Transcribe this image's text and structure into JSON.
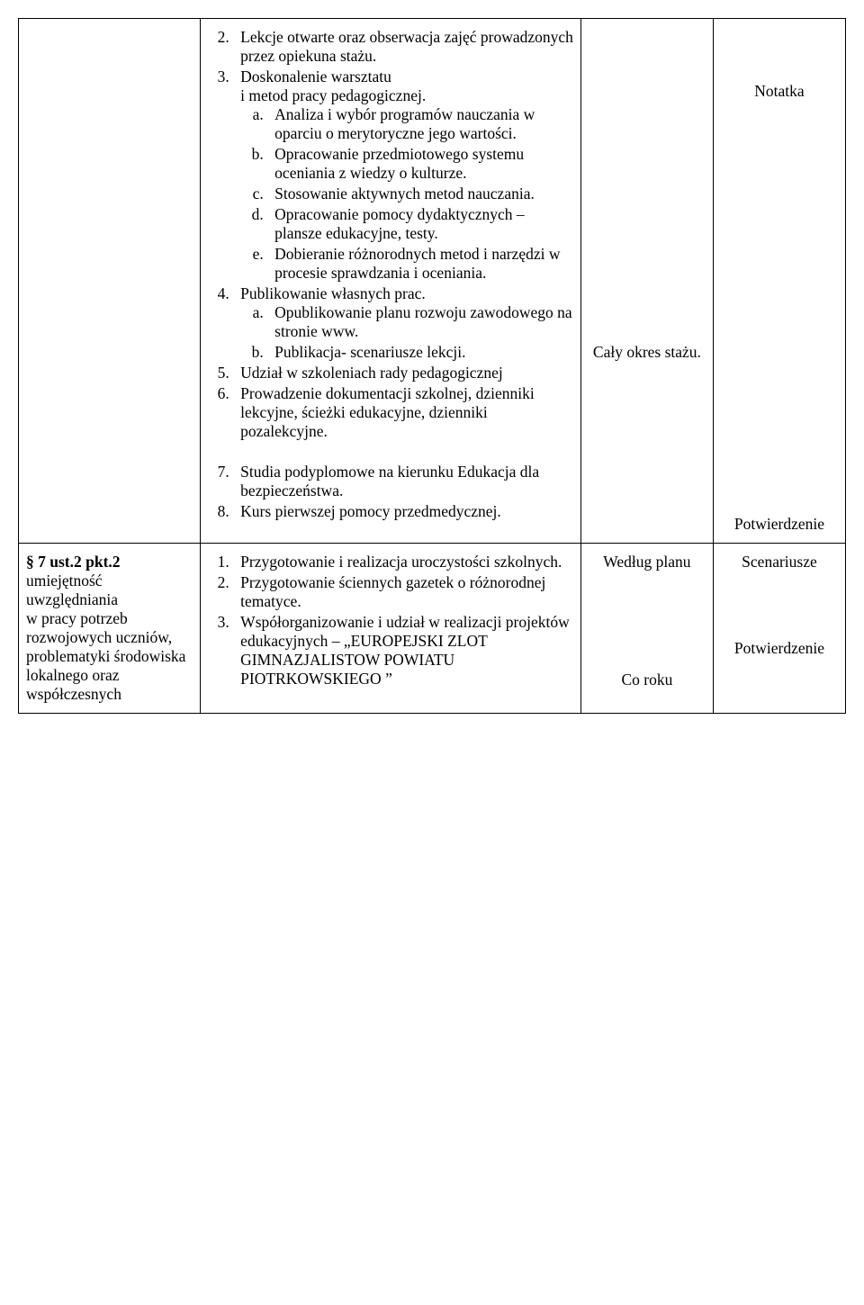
{
  "row1": {
    "col1": "",
    "col2": {
      "start": 2,
      "items": [
        {
          "text": "Lekcje otwarte oraz obserwacja zajęć prowadzonych przez opiekuna stażu."
        },
        {
          "text": "Doskonalenie warsztatu\ni metod pracy pedagogicznej.",
          "sub": [
            "Analiza i wybór programów nauczania w oparciu o merytoryczne jego wartości.",
            "Opracowanie przedmiotowego systemu oceniania z wiedzy o kulturze.",
            "Stosowanie aktywnych metod nauczania.",
            "Opracowanie pomocy dydaktycznych – plansze edukacyjne, testy.",
            "Dobieranie różnorodnych metod i narzędzi w procesie sprawdzania i oceniania."
          ]
        },
        {
          "text": "Publikowanie własnych prac.",
          "sub": [
            "Opublikowanie planu rozwoju zawodowego na stronie www.",
            "Publikacja- scenariusze lekcji."
          ]
        },
        {
          "text": "Udział w szkoleniach rady pedagogicznej"
        },
        {
          "text": "Prowadzenie dokumentacji szkolnej, dzienniki lekcyjne, ścieżki edukacyjne, dzienniki pozalekcyjne."
        },
        {
          "gap": true
        },
        {
          "text": "Studia podyplomowe  na kierunku Edukacja dla bezpieczeństwa."
        },
        {
          "text": "Kurs pierwszej pomocy przedmedycznej."
        }
      ]
    },
    "col3": "Cały okres stażu.",
    "col4": {
      "a": "Notatka",
      "b": "Potwierdzenie"
    }
  },
  "row2": {
    "col1": {
      "heading": "§ 7 ust.2 pkt.2",
      "body": "umiejętność uwzględniania\nw pracy potrzeb rozwojowych uczniów, problematyki środowiska lokalnego oraz współczesnych"
    },
    "col2": {
      "start": 1,
      "items": [
        {
          "text": "Przygotowanie i realizacja uroczystości szkolnych."
        },
        {
          "text": "Przygotowanie ściennych gazetek o różnorodnej tematyce."
        },
        {
          "text": "Współorganizowanie i udział w realizacji projektów edukacyjnych – „EUROPEJSKI ZLOT GIMNAZJALISTOW POWIATU PIOTRKOWSKIEGO ”"
        }
      ]
    },
    "col3": {
      "a": "Według planu",
      "b": "Co roku"
    },
    "col4": {
      "a": "Scenariusze",
      "b": "Potwierdzenie"
    }
  }
}
